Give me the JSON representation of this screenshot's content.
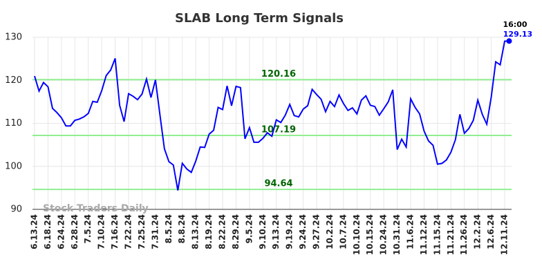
{
  "chart_data": {
    "type": "line",
    "title": "SLAB Long Term Signals",
    "categories": [
      "6.13.24",
      null,
      null,
      "6.18.24",
      null,
      null,
      "6.24.24",
      null,
      null,
      "6.28.24",
      null,
      null,
      "7.5.24",
      null,
      null,
      "7.10.24",
      null,
      null,
      "7.16.24",
      null,
      null,
      "7.22.24",
      null,
      null,
      "7.25.24",
      null,
      null,
      "7.31.24",
      null,
      null,
      "8.5.24",
      null,
      null,
      "8.8.24",
      null,
      null,
      "8.13.24",
      null,
      null,
      "8.19.24",
      null,
      null,
      "8.22.24",
      null,
      null,
      "8.29.24",
      null,
      null,
      "9.5.24",
      null,
      null,
      "9.10.24",
      null,
      null,
      "9.13.24",
      null,
      null,
      "9.19.24",
      null,
      null,
      "9.24.24",
      null,
      null,
      "9.27.24",
      null,
      null,
      "10.2.24",
      null,
      null,
      "10.7.24",
      null,
      null,
      "10.10.24",
      null,
      null,
      "10.15.24",
      null,
      null,
      "10.24.24",
      null,
      null,
      "10.31.24",
      null,
      null,
      "11.6.24",
      null,
      null,
      "11.12.24",
      null,
      null,
      "11.15.24",
      null,
      null,
      "11.21.24",
      null,
      null,
      "11.26.24",
      null,
      null,
      "12.2.24",
      null,
      null,
      "12.6.24",
      null,
      null,
      "12.11.24",
      null
    ],
    "values": [
      121,
      117.5,
      119.5,
      118.5,
      113.5,
      112.5,
      111.3,
      109.4,
      109.4,
      110.7,
      111,
      111.5,
      112.3,
      115.1,
      114.9,
      117.6,
      121.1,
      122.4,
      125.1,
      114.2,
      110.4,
      116.9,
      116.3,
      115.5,
      116.8,
      120.3,
      116,
      120.1,
      112,
      104.1,
      101.1,
      100.3,
      94.4,
      100.7,
      99.4,
      98.6,
      101.2,
      104.5,
      104.4,
      107.5,
      108.4,
      113.7,
      113.2,
      118.7,
      114.1,
      118.6,
      118.3,
      106.4,
      109,
      105.6,
      105.6,
      106.5,
      107.8,
      107,
      110.8,
      110.2,
      111.9,
      114.4,
      111.8,
      111.5,
      113.3,
      114.1,
      117.9,
      116.7,
      115.6,
      112.7,
      115.1,
      113.9,
      116.6,
      114.6,
      113,
      113.6,
      112.2,
      115.4,
      116.4,
      114.2,
      113.9,
      111.9,
      113.4,
      115,
      117.8,
      103.9,
      106.3,
      104.5,
      115.7,
      113.7,
      112.2,
      108.2,
      105.9,
      104.9,
      100.5,
      100.7,
      101.5,
      103.3,
      106.2,
      112.1,
      107.7,
      108.8,
      110.7,
      115.4,
      112.1,
      109.8,
      116.1,
      124.3,
      123.6,
      129.1,
      129.13
    ],
    "color": "#0000ff",
    "levels": [
      120.16,
      107.19,
      94.64
    ],
    "level_color": "#90ee90",
    "level_label_color": "#006400",
    "last_time": "16:00",
    "watermark": "Stock Traders Daily",
    "ylim": [
      90,
      130
    ],
    "yticks": [
      90,
      100,
      110,
      120,
      130
    ],
    "grid": true
  }
}
